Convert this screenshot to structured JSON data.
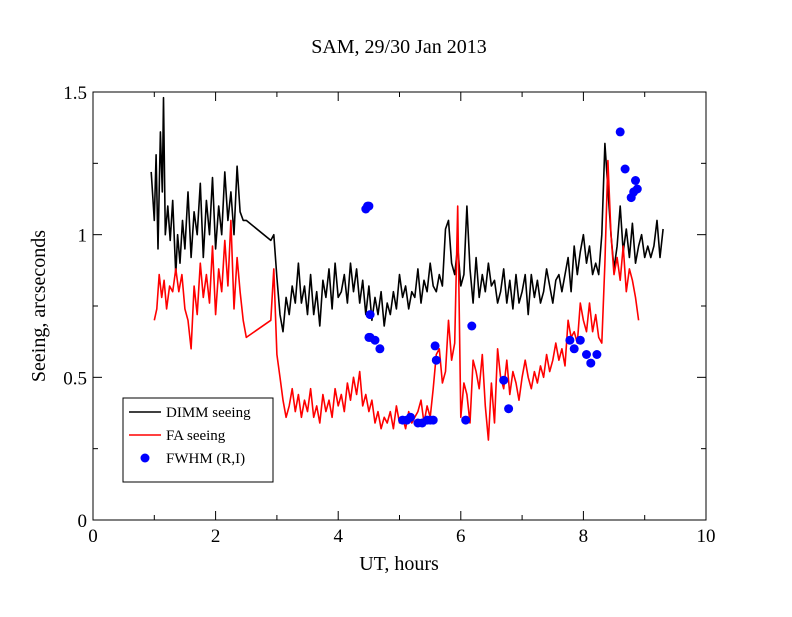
{
  "chart_data": {
    "type": "line",
    "title": "SAM, 29/30 Jan 2013",
    "xlabel": "UT, hours",
    "ylabel": "Seeing, arcseconds",
    "xlim": [
      0,
      10
    ],
    "ylim": [
      0,
      1.5
    ],
    "xticks": [
      0,
      2,
      4,
      6,
      8,
      10
    ],
    "xtick_labels": [
      "0",
      "2",
      "4",
      "6",
      "8",
      "10"
    ],
    "yticks": [
      0,
      0.5,
      1,
      1.5
    ],
    "ytick_labels": [
      "0",
      "0.5",
      "1",
      "1.5"
    ],
    "grid": false,
    "legend_position": "bottom-left",
    "series": [
      {
        "name": "DIMM seeing",
        "kind": "line",
        "color": "#000000",
        "x": [
          0.95,
          1.0,
          1.03,
          1.06,
          1.1,
          1.13,
          1.15,
          1.18,
          1.22,
          1.26,
          1.3,
          1.35,
          1.38,
          1.42,
          1.46,
          1.5,
          1.55,
          1.6,
          1.65,
          1.7,
          1.75,
          1.8,
          1.85,
          1.9,
          1.95,
          2.0,
          2.05,
          2.1,
          2.15,
          2.2,
          2.25,
          2.3,
          2.35,
          2.4,
          2.45,
          2.5,
          2.9,
          2.95,
          3.0,
          3.05,
          3.1,
          3.15,
          3.2,
          3.25,
          3.3,
          3.35,
          3.4,
          3.45,
          3.5,
          3.55,
          3.6,
          3.65,
          3.7,
          3.75,
          3.8,
          3.85,
          3.9,
          3.95,
          4.0,
          4.05,
          4.1,
          4.15,
          4.2,
          4.25,
          4.3,
          4.35,
          4.4,
          4.45,
          4.5,
          4.55,
          4.6,
          4.65,
          4.7,
          4.75,
          4.8,
          4.85,
          4.9,
          4.95,
          5.0,
          5.05,
          5.1,
          5.15,
          5.2,
          5.25,
          5.3,
          5.35,
          5.4,
          5.45,
          5.5,
          5.55,
          5.6,
          5.65,
          5.7,
          5.75,
          5.8,
          5.85,
          5.9,
          5.95,
          6.0,
          6.05,
          6.1,
          6.15,
          6.2,
          6.25,
          6.3,
          6.35,
          6.4,
          6.45,
          6.5,
          6.55,
          6.6,
          6.65,
          6.7,
          6.75,
          6.8,
          6.85,
          6.9,
          6.95,
          7.0,
          7.05,
          7.1,
          7.15,
          7.2,
          7.25,
          7.3,
          7.35,
          7.4,
          7.45,
          7.5,
          7.55,
          7.6,
          7.65,
          7.7,
          7.75,
          7.8,
          7.85,
          7.9,
          7.95,
          8.0,
          8.05,
          8.1,
          8.15,
          8.2,
          8.25,
          8.3,
          8.35,
          8.4,
          8.45,
          8.5,
          8.55,
          8.6,
          8.65,
          8.7,
          8.75,
          8.8,
          8.85,
          8.9,
          8.95,
          9.0,
          9.05,
          9.1,
          9.15,
          9.2,
          9.25,
          9.3
        ],
        "values": [
          1.22,
          1.05,
          1.28,
          0.95,
          1.36,
          1.15,
          1.48,
          1.0,
          1.1,
          0.98,
          1.12,
          0.86,
          1.0,
          0.9,
          1.05,
          0.95,
          1.15,
          0.92,
          1.08,
          1.0,
          1.18,
          0.92,
          1.12,
          1.0,
          1.2,
          0.95,
          1.1,
          1.0,
          1.22,
          1.05,
          1.15,
          1.0,
          1.24,
          1.08,
          1.05,
          1.05,
          0.98,
          1.0,
          0.85,
          0.72,
          0.66,
          0.78,
          0.72,
          0.82,
          0.76,
          0.9,
          0.76,
          0.82,
          0.72,
          0.86,
          0.72,
          0.8,
          0.68,
          0.84,
          0.78,
          0.88,
          0.74,
          0.9,
          0.78,
          0.8,
          0.86,
          0.76,
          0.9,
          0.8,
          0.88,
          0.76,
          0.84,
          0.72,
          0.82,
          0.7,
          0.78,
          0.72,
          0.8,
          0.68,
          0.76,
          0.72,
          0.8,
          0.74,
          0.86,
          0.78,
          0.82,
          0.74,
          0.8,
          0.78,
          0.88,
          0.76,
          0.84,
          0.8,
          0.9,
          0.82,
          0.8,
          0.86,
          0.82,
          1.02,
          1.05,
          0.9,
          0.86,
          0.96,
          0.82,
          0.86,
          1.1,
          0.88,
          0.76,
          0.92,
          0.78,
          0.86,
          0.8,
          0.9,
          0.82,
          0.84,
          0.76,
          0.8,
          0.88,
          0.76,
          0.84,
          0.74,
          0.86,
          0.76,
          0.8,
          0.86,
          0.72,
          0.86,
          0.78,
          0.84,
          0.76,
          0.8,
          0.88,
          0.82,
          0.76,
          0.84,
          0.86,
          0.8,
          0.86,
          0.92,
          0.8,
          0.96,
          0.86,
          0.94,
          1.0,
          0.9,
          0.96,
          0.86,
          0.9,
          0.86,
          1.0,
          1.32,
          1.16,
          1.0,
          0.88,
          0.96,
          1.1,
          0.94,
          1.02,
          0.92,
          1.04,
          0.9,
          0.96,
          1.0,
          0.92,
          0.96,
          0.92,
          0.96,
          1.05,
          0.92,
          1.02
        ]
      },
      {
        "name": "FA seeing",
        "kind": "line",
        "color": "#ff0000",
        "x": [
          1.0,
          1.04,
          1.08,
          1.12,
          1.16,
          1.2,
          1.25,
          1.3,
          1.35,
          1.4,
          1.45,
          1.5,
          1.55,
          1.6,
          1.65,
          1.7,
          1.75,
          1.8,
          1.85,
          1.9,
          1.95,
          2.0,
          2.05,
          2.1,
          2.15,
          2.2,
          2.25,
          2.3,
          2.35,
          2.4,
          2.45,
          2.5,
          2.9,
          2.95,
          3.0,
          3.05,
          3.1,
          3.15,
          3.2,
          3.25,
          3.3,
          3.35,
          3.4,
          3.45,
          3.5,
          3.55,
          3.6,
          3.65,
          3.7,
          3.75,
          3.8,
          3.85,
          3.9,
          3.95,
          4.0,
          4.05,
          4.1,
          4.15,
          4.2,
          4.25,
          4.3,
          4.35,
          4.4,
          4.45,
          4.5,
          4.55,
          4.6,
          4.65,
          4.7,
          4.75,
          4.8,
          4.85,
          4.9,
          4.95,
          5.0,
          5.05,
          5.1,
          5.15,
          5.2,
          5.25,
          5.3,
          5.35,
          5.4,
          5.45,
          5.5,
          5.55,
          5.6,
          5.65,
          5.7,
          5.75,
          5.8,
          5.85,
          5.9,
          5.95,
          6.0,
          6.05,
          6.1,
          6.15,
          6.2,
          6.25,
          6.3,
          6.35,
          6.4,
          6.45,
          6.5,
          6.55,
          6.6,
          6.65,
          6.7,
          6.75,
          6.8,
          6.85,
          6.9,
          6.95,
          7.0,
          7.05,
          7.1,
          7.15,
          7.2,
          7.25,
          7.3,
          7.35,
          7.4,
          7.45,
          7.5,
          7.55,
          7.6,
          7.65,
          7.7,
          7.75,
          7.8,
          7.85,
          7.9,
          7.95,
          8.0,
          8.05,
          8.1,
          8.15,
          8.2,
          8.25,
          8.3,
          8.35,
          8.4,
          8.45,
          8.5,
          8.55,
          8.6,
          8.65,
          8.7,
          8.75,
          8.8,
          8.85,
          8.9
        ],
        "values": [
          0.7,
          0.74,
          0.86,
          0.78,
          0.84,
          0.74,
          0.82,
          0.8,
          0.88,
          0.8,
          0.86,
          0.74,
          0.7,
          0.6,
          0.82,
          0.72,
          0.9,
          0.78,
          0.86,
          0.76,
          0.96,
          0.72,
          0.88,
          0.8,
          0.98,
          0.82,
          1.05,
          0.74,
          0.92,
          0.8,
          0.7,
          0.64,
          0.7,
          0.88,
          0.58,
          0.5,
          0.42,
          0.36,
          0.4,
          0.46,
          0.38,
          0.44,
          0.36,
          0.42,
          0.38,
          0.46,
          0.36,
          0.4,
          0.34,
          0.44,
          0.38,
          0.42,
          0.36,
          0.46,
          0.4,
          0.44,
          0.38,
          0.48,
          0.42,
          0.5,
          0.44,
          0.52,
          0.4,
          0.44,
          0.38,
          0.42,
          0.34,
          0.38,
          0.32,
          0.36,
          0.34,
          0.38,
          0.32,
          0.4,
          0.34,
          0.36,
          0.32,
          0.38,
          0.34,
          0.36,
          0.38,
          0.42,
          0.34,
          0.4,
          0.36,
          0.46,
          0.58,
          0.6,
          0.48,
          0.52,
          0.7,
          0.56,
          0.62,
          1.1,
          0.36,
          0.48,
          0.44,
          0.34,
          0.56,
          0.52,
          0.46,
          0.58,
          0.4,
          0.28,
          0.48,
          0.34,
          0.6,
          0.5,
          0.46,
          0.56,
          0.44,
          0.52,
          0.48,
          0.42,
          0.5,
          0.56,
          0.5,
          0.46,
          0.52,
          0.48,
          0.54,
          0.5,
          0.58,
          0.52,
          0.56,
          0.62,
          0.56,
          0.6,
          0.54,
          0.7,
          0.64,
          0.66,
          0.62,
          0.76,
          0.7,
          0.66,
          0.76,
          0.66,
          0.72,
          0.64,
          0.62,
          0.9,
          1.26,
          1.0,
          0.86,
          0.92,
          0.84,
          0.96,
          0.8,
          0.88,
          0.84,
          0.78,
          0.7
        ]
      },
      {
        "name": "FWHM (R,I)",
        "kind": "scatter",
        "color": "#0000ff",
        "x": [
          4.45,
          4.48,
          4.5,
          4.52,
          4.5,
          4.52,
          4.6,
          4.68,
          5.05,
          5.12,
          5.18,
          5.3,
          5.37,
          5.45,
          5.5,
          5.55,
          5.58,
          5.6,
          6.08,
          6.18,
          6.7,
          6.78,
          7.78,
          7.85,
          7.95,
          8.05,
          8.12,
          8.22,
          8.6,
          8.68,
          8.78,
          8.82,
          8.85,
          8.88
        ],
        "values": [
          1.09,
          1.1,
          1.1,
          0.72,
          0.64,
          0.64,
          0.63,
          0.6,
          0.35,
          0.35,
          0.36,
          0.34,
          0.34,
          0.35,
          0.35,
          0.35,
          0.61,
          0.56,
          0.35,
          0.68,
          0.49,
          0.39,
          0.63,
          0.6,
          0.63,
          0.58,
          0.55,
          0.58,
          1.36,
          1.23,
          1.13,
          1.15,
          1.19,
          1.16
        ]
      }
    ]
  }
}
